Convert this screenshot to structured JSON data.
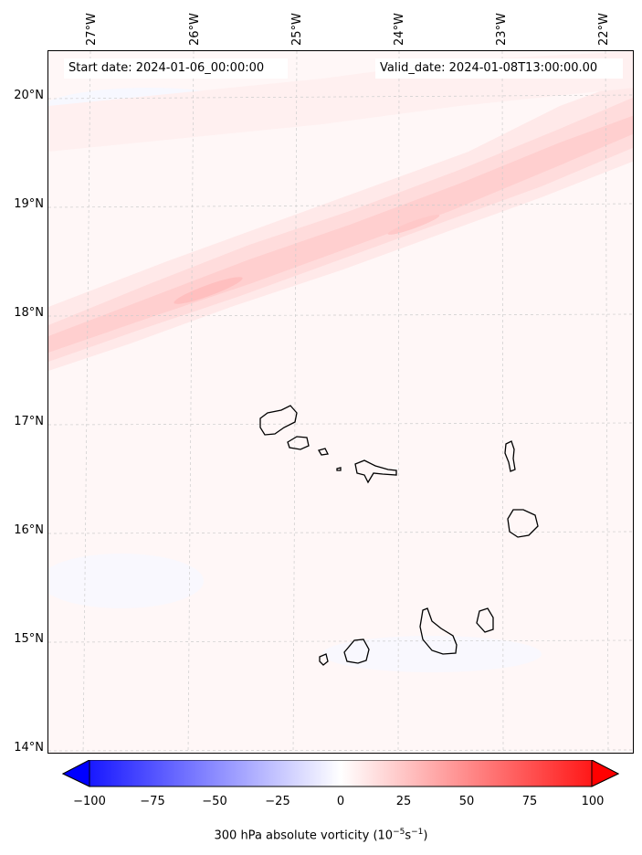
{
  "map": {
    "start_date": "Start date: 2024-01-06_00:00:00",
    "valid_date": "Valid_date: 2024-01-08T13:00:00.00",
    "lat_labels": [
      "20°N",
      "19°N",
      "18°N",
      "17°N",
      "16°N",
      "15°N",
      "14°N"
    ],
    "lon_labels": [
      "27°W",
      "26°W",
      "25°W",
      "24°W",
      "23°W",
      "22°W"
    ],
    "islands": [
      "Santo Antão",
      "São Vicente",
      "Santa Luzia",
      "Branco",
      "São Nicolau",
      "Sal",
      "Boa Vista",
      "Maio",
      "Santiago",
      "Fogo",
      "Brava"
    ]
  },
  "colorbar": {
    "ticks": [
      "−100",
      "−75",
      "−50",
      "−25",
      "0",
      "25",
      "50",
      "75",
      "100"
    ],
    "label_prefix": "300 hPa absolute vorticity (10",
    "label_exp1": "−5",
    "label_mid": "s",
    "label_exp2": "−1",
    "label_suffix": ")",
    "neg_color": "#0000ff",
    "zero_color": "#ffffff",
    "pos_color": "#ff0000"
  }
}
